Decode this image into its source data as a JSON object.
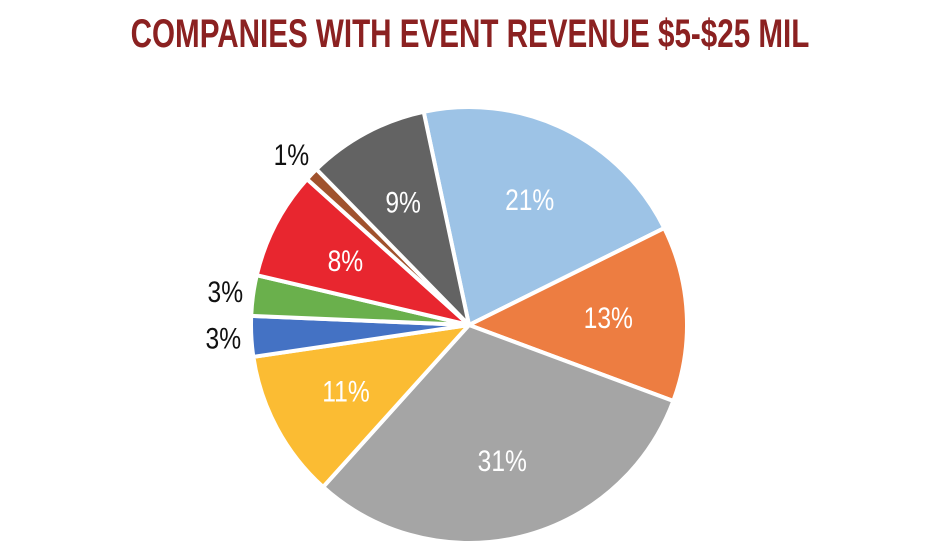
{
  "chart_data": {
    "type": "pie",
    "title": "COMPANIES WITH EVENT REVENUE $5-$25 MIL",
    "slices": [
      {
        "label": "21%",
        "value": 21,
        "color": "#9dc3e6"
      },
      {
        "label": "13%",
        "value": 13,
        "color": "#ed7d41"
      },
      {
        "label": "31%",
        "value": 31,
        "color": "#a5a5a5"
      },
      {
        "label": "11%",
        "value": 11,
        "color": "#fbbc33"
      },
      {
        "label": "3%",
        "value": 3,
        "color": "#4472c4"
      },
      {
        "label": "3%",
        "value": 3,
        "color": "#6ab04c"
      },
      {
        "label": "8%",
        "value": 8,
        "color": "#e8262f"
      },
      {
        "label": "1%",
        "value": 1,
        "color": "#a0522d"
      },
      {
        "label": "9%",
        "value": 9,
        "color": "#636363"
      }
    ],
    "legend": "none",
    "label_style": "percent labels on slices; small slices labeled outside"
  }
}
